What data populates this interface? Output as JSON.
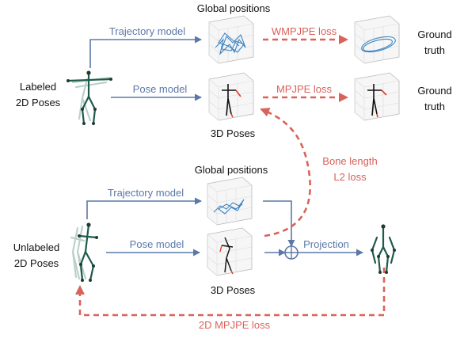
{
  "labels": {
    "global_positions_top": "Global positions",
    "global_positions_bottom": "Global positions",
    "labeled": [
      "Labeled",
      "2D Poses"
    ],
    "unlabeled": [
      "Unlabeled",
      "2D Poses"
    ],
    "poses_3d_top": "3D Poses",
    "poses_3d_bottom": "3D Poses",
    "ground_truth_top": [
      "Ground",
      "truth"
    ],
    "ground_truth_mid": [
      "Ground",
      "truth"
    ]
  },
  "arrows": {
    "trajectory_model_top": "Trajectory model",
    "pose_model_top": "Pose model",
    "trajectory_model_bottom": "Trajectory model",
    "pose_model_bottom": "Pose model",
    "projection": "Projection"
  },
  "losses": {
    "wmpjpe": "WMPJPE loss",
    "mpjpe": "MPJPE loss",
    "bone_length": [
      "Bone length",
      "L2 loss"
    ],
    "mpjpe_2d": "2D MPJPE loss"
  },
  "colors": {
    "model_arrow": "#5b78a8",
    "loss": "#d9625a",
    "skeleton": "#1e5b4b",
    "trajectory": "#3f86c4"
  }
}
